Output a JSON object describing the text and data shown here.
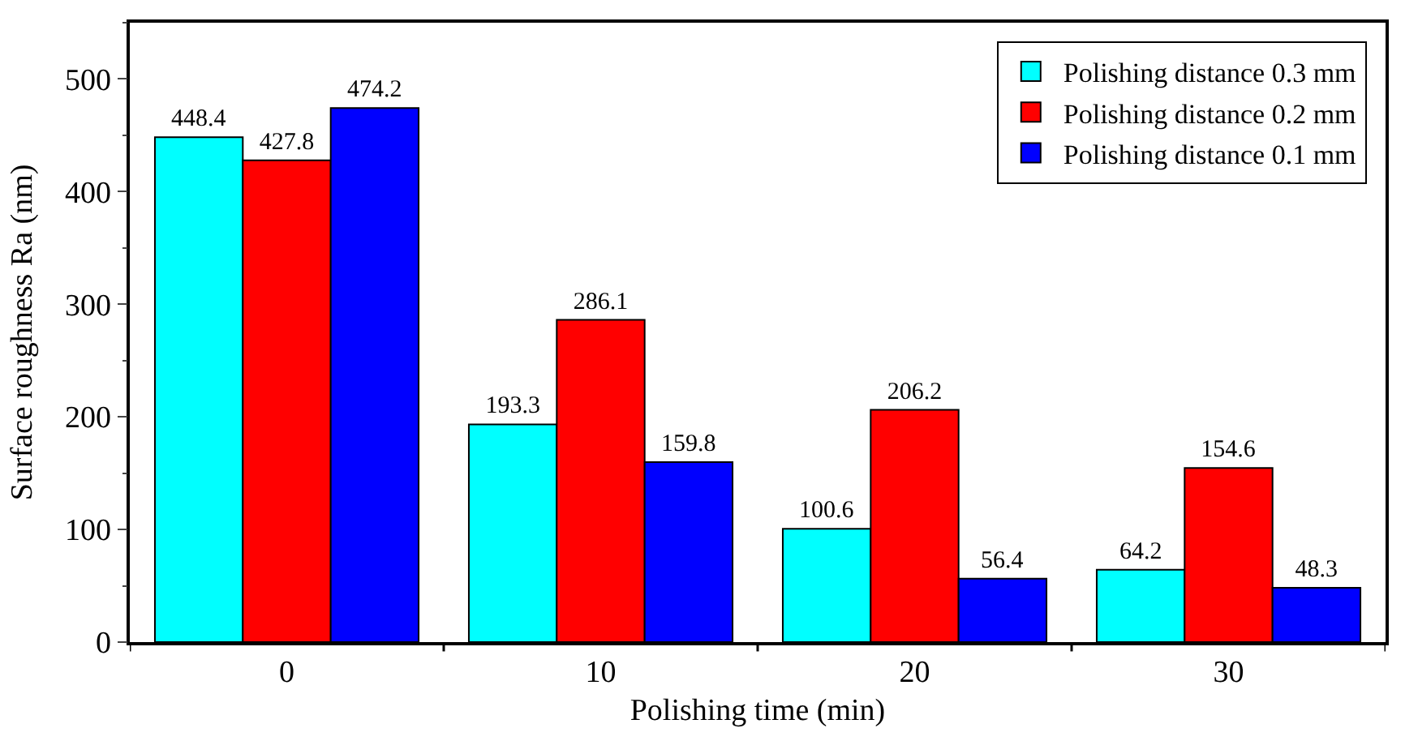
{
  "chart_data": {
    "type": "bar",
    "xlabel": "Polishing time (min)",
    "ylabel": "Surface roughness Ra (nm)",
    "categories": [
      "0",
      "10",
      "20",
      "30"
    ],
    "series": [
      {
        "name": "Polishing distance 0.3 mm",
        "color": "#00ffff",
        "values": [
          448.4,
          193.3,
          100.6,
          64.2
        ]
      },
      {
        "name": "Polishing distance 0.2 mm",
        "color": "#ff0000",
        "values": [
          427.8,
          286.1,
          206.2,
          154.6
        ]
      },
      {
        "name": "Polishing distance 0.1 mm",
        "color": "#0000ff",
        "values": [
          474.2,
          159.8,
          56.4,
          48.3
        ]
      }
    ],
    "ylim": [
      0,
      550
    ],
    "yticks": [
      0,
      100,
      200,
      300,
      400,
      500
    ],
    "data_labels": true,
    "legend": "top right"
  }
}
